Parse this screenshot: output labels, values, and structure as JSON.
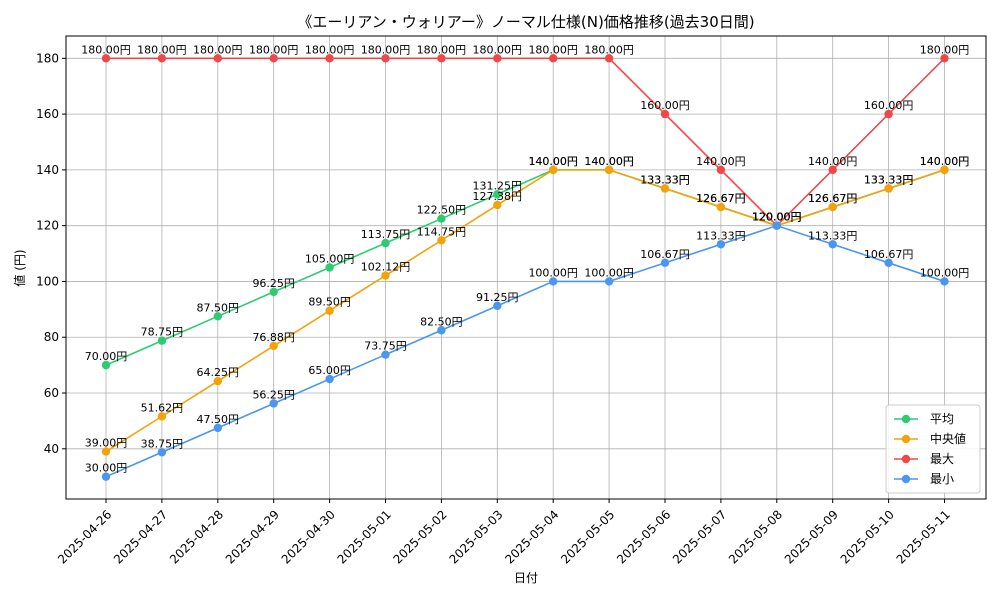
{
  "chart_data": {
    "type": "line",
    "title": "《エーリアン・ウォリアー》ノーマル仕様(N)価格推移(過去30日間)",
    "xlabel": "日付",
    "ylabel": "値 (円)",
    "ylim": [
      22,
      188
    ],
    "yticks": [
      40,
      60,
      80,
      100,
      120,
      140,
      160,
      180
    ],
    "grid": true,
    "legend_position": "lower-right",
    "value_suffix": "円",
    "x": [
      "2025-04-26",
      "2025-04-27",
      "2025-04-28",
      "2025-04-29",
      "2025-04-30",
      "2025-05-01",
      "2025-05-02",
      "2025-05-03",
      "2025-05-04",
      "2025-05-05",
      "2025-05-06",
      "2025-05-07",
      "2025-05-08",
      "2025-05-09",
      "2025-05-10",
      "2025-05-11"
    ],
    "series": [
      {
        "name": "平均",
        "color": "#2ecc71",
        "values": [
          70.0,
          78.75,
          87.5,
          96.25,
          105.0,
          113.75,
          122.5,
          131.25,
          140.0,
          140.0,
          133.33,
          126.67,
          120.0,
          126.67,
          133.33,
          140.0
        ]
      },
      {
        "name": "中央値",
        "color": "#f5a10a",
        "values": [
          39.0,
          51.62,
          64.25,
          76.88,
          89.5,
          102.12,
          114.75,
          127.38,
          140.0,
          140.0,
          133.33,
          126.67,
          120.0,
          126.67,
          133.33,
          140.0
        ]
      },
      {
        "name": "最大",
        "color": "#f04848",
        "values": [
          180.0,
          180.0,
          180.0,
          180.0,
          180.0,
          180.0,
          180.0,
          180.0,
          180.0,
          180.0,
          160.0,
          140.0,
          120.0,
          140.0,
          160.0,
          180.0
        ]
      },
      {
        "name": "最小",
        "color": "#4a96f0",
        "values": [
          30.0,
          38.75,
          47.5,
          56.25,
          65.0,
          73.75,
          82.5,
          91.25,
          100.0,
          100.0,
          106.67,
          113.33,
          120.0,
          113.33,
          106.67,
          100.0
        ]
      }
    ]
  }
}
